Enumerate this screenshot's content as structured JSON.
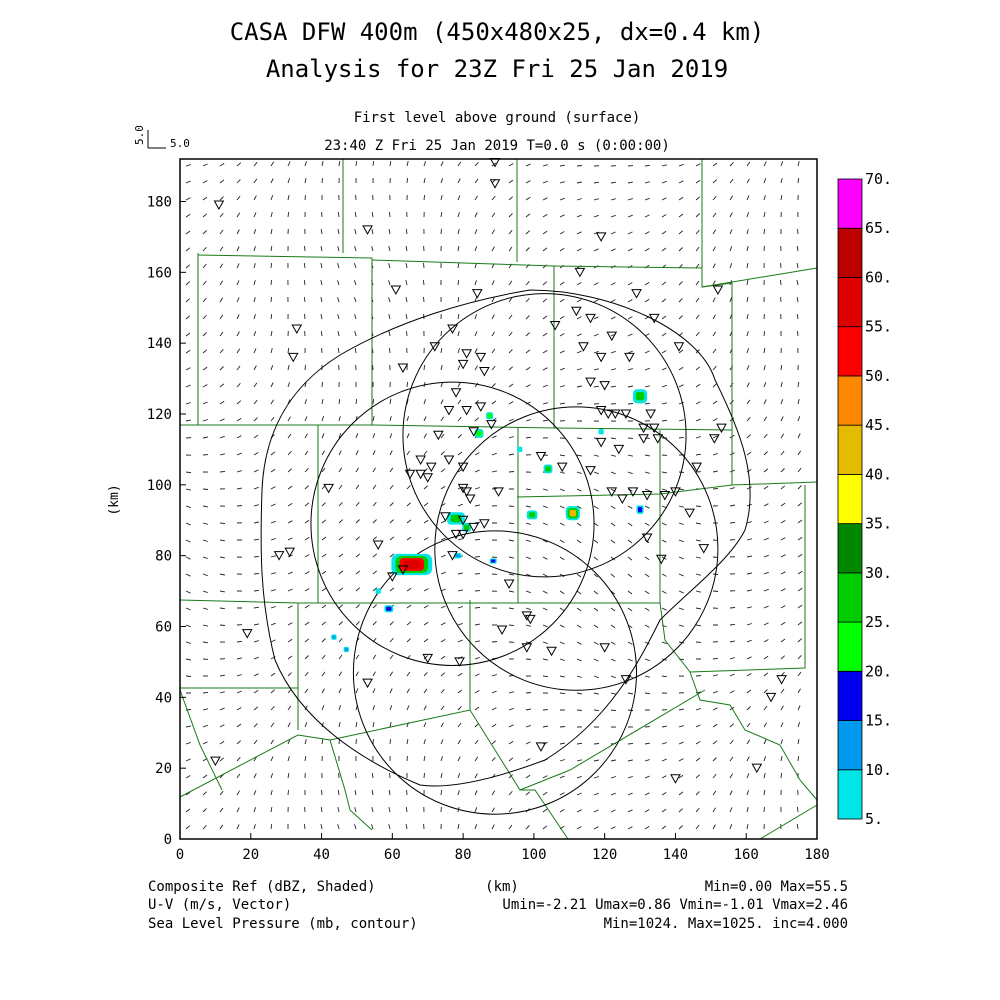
{
  "header": {
    "title_line1": "CASA DFW 400m (450x480x25, dx=0.4 km)",
    "title_line2": "Analysis for 23Z Fri 25 Jan 2019",
    "level_label": "First level above ground (surface)",
    "time_label": "23:40 Z Fri 25 Jan 2019    T=0.0 s (0:00:00)",
    "vector_scale_label": "5.0",
    "vector_scale_label_vertical": "5.0"
  },
  "footer": {
    "shade_field": "Composite Ref (dBZ, Shaded)",
    "xunit": "(km)",
    "shade_range": "Min=0.00 Max=55.5",
    "vector_field": "U-V (m/s, Vector)",
    "vector_range": "Umin=-2.21 Umax=0.86 Vmin=-1.01 Vmax=2.46",
    "contour_field": "Sea Level Pressure (mb, contour)",
    "contour_range": "Min=1024. Max=1025. inc=4.000"
  },
  "chart_data": {
    "type": "heatmap",
    "xlabel": "(km)",
    "ylabel": "(km)",
    "xlim": [
      0,
      180
    ],
    "ylim": [
      0,
      192
    ],
    "xticks": [
      0,
      20,
      40,
      60,
      80,
      100,
      120,
      140,
      160,
      180
    ],
    "yticks": [
      0,
      20,
      40,
      60,
      80,
      100,
      120,
      140,
      160,
      180
    ],
    "grid": false,
    "colorbar": {
      "levels": [
        "5.",
        "10.",
        "15.",
        "20.",
        "25.",
        "30.",
        "35.",
        "40.",
        "45.",
        "50.",
        "55.",
        "60.",
        "65.",
        "70."
      ],
      "colors": [
        "#00e5e5",
        "#0099ee",
        "#0000ee",
        "#00ff00",
        "#00cc00",
        "#008800",
        "#ffff00",
        "#e5bb00",
        "#ff8800",
        "#ff0000",
        "#dd0000",
        "#bb0000",
        "#ff00ff"
      ]
    },
    "reflectivity_cells": [
      {
        "x": 65.5,
        "y": 77.5,
        "w": 11.5,
        "h": 6,
        "max_dbz": 55.5
      },
      {
        "x": 130,
        "y": 125,
        "w": 4,
        "h": 4,
        "max_dbz": 25
      },
      {
        "x": 111,
        "y": 92,
        "w": 4,
        "h": 4,
        "max_dbz": 40
      },
      {
        "x": 78,
        "y": 90.5,
        "w": 5,
        "h": 3.5,
        "max_dbz": 25
      },
      {
        "x": 104,
        "y": 104.5,
        "w": 2.5,
        "h": 2.5,
        "max_dbz": 25
      },
      {
        "x": 99.5,
        "y": 91.5,
        "w": 3,
        "h": 2.5,
        "max_dbz": 25
      },
      {
        "x": 81,
        "y": 88,
        "w": 2.5,
        "h": 2.5,
        "max_dbz": 25
      },
      {
        "x": 84.5,
        "y": 114.5,
        "w": 2.5,
        "h": 2.5,
        "max_dbz": 20
      },
      {
        "x": 87.5,
        "y": 119.5,
        "w": 2,
        "h": 2,
        "max_dbz": 20
      },
      {
        "x": 130,
        "y": 93,
        "w": 2,
        "h": 2.5,
        "max_dbz": 15
      },
      {
        "x": 59,
        "y": 65,
        "w": 2.5,
        "h": 2,
        "max_dbz": 15
      },
      {
        "x": 88.5,
        "y": 78.5,
        "w": 2,
        "h": 1.5,
        "max_dbz": 15
      },
      {
        "x": 78.5,
        "y": 80,
        "w": 2,
        "h": 1.5,
        "max_dbz": 10
      },
      {
        "x": 43.5,
        "y": 57,
        "w": 1.5,
        "h": 1.5,
        "max_dbz": 10
      },
      {
        "x": 47,
        "y": 53.5,
        "w": 1.5,
        "h": 1.5,
        "max_dbz": 10
      },
      {
        "x": 56,
        "y": 70,
        "w": 1.5,
        "h": 1.5,
        "max_dbz": 5
      },
      {
        "x": 96,
        "y": 110,
        "w": 1.5,
        "h": 1.5,
        "max_dbz": 5
      },
      {
        "x": 119,
        "y": 115,
        "w": 1.5,
        "h": 1.5,
        "max_dbz": 5
      }
    ],
    "radar_circles": [
      {
        "x": 89,
        "y": 47,
        "r": 40
      },
      {
        "x": 112,
        "y": 82,
        "r": 40
      },
      {
        "x": 103,
        "y": 114,
        "r": 40
      },
      {
        "x": 77,
        "y": 89,
        "r": 40
      }
    ],
    "station_markers": [
      [
        89,
        191
      ],
      [
        89,
        185
      ],
      [
        11,
        179
      ],
      [
        53,
        172
      ],
      [
        119,
        170
      ],
      [
        113,
        160
      ],
      [
        61,
        155
      ],
      [
        84,
        154
      ],
      [
        129,
        154
      ],
      [
        152,
        155
      ],
      [
        33,
        144
      ],
      [
        77,
        144
      ],
      [
        112,
        149
      ],
      [
        116,
        147
      ],
      [
        122,
        142
      ],
      [
        134,
        147
      ],
      [
        106,
        145
      ],
      [
        81,
        137
      ],
      [
        85,
        136
      ],
      [
        80,
        134
      ],
      [
        86,
        132
      ],
      [
        32,
        136
      ],
      [
        63,
        133
      ],
      [
        72,
        139
      ],
      [
        114,
        139
      ],
      [
        119,
        136
      ],
      [
        127,
        136
      ],
      [
        141,
        139
      ],
      [
        116,
        129
      ],
      [
        120,
        128
      ],
      [
        78,
        126
      ],
      [
        76,
        121
      ],
      [
        81,
        121
      ],
      [
        85,
        122
      ],
      [
        88,
        117
      ],
      [
        126,
        120
      ],
      [
        119,
        121
      ],
      [
        121,
        120
      ],
      [
        123,
        120
      ],
      [
        133,
        120
      ],
      [
        131,
        116
      ],
      [
        134,
        116
      ],
      [
        131,
        113
      ],
      [
        135,
        113
      ],
      [
        119,
        112
      ],
      [
        151,
        113
      ],
      [
        153,
        116
      ],
      [
        124,
        110
      ],
      [
        83,
        115
      ],
      [
        73,
        114
      ],
      [
        76,
        107
      ],
      [
        68,
        107
      ],
      [
        65,
        103
      ],
      [
        68,
        103
      ],
      [
        70,
        102
      ],
      [
        71,
        105
      ],
      [
        80,
        105
      ],
      [
        80,
        99
      ],
      [
        81,
        98
      ],
      [
        90,
        98
      ],
      [
        82,
        96
      ],
      [
        102,
        108
      ],
      [
        108,
        105
      ],
      [
        116,
        104
      ],
      [
        122,
        98
      ],
      [
        125,
        96
      ],
      [
        128,
        98
      ],
      [
        132,
        97
      ],
      [
        137,
        97
      ],
      [
        144,
        92
      ],
      [
        140,
        98
      ],
      [
        146,
        105
      ],
      [
        148,
        82
      ],
      [
        132,
        85
      ],
      [
        136,
        79
      ],
      [
        42,
        99
      ],
      [
        28,
        80
      ],
      [
        31,
        81
      ],
      [
        56,
        83
      ],
      [
        77,
        80
      ],
      [
        78,
        86
      ],
      [
        80,
        86
      ],
      [
        83,
        88
      ],
      [
        86,
        89
      ],
      [
        80,
        90
      ],
      [
        75,
        91
      ],
      [
        93,
        72
      ],
      [
        98,
        63
      ],
      [
        99,
        62
      ],
      [
        91,
        59
      ],
      [
        98,
        54
      ],
      [
        105,
        53
      ],
      [
        120,
        54
      ],
      [
        126,
        45
      ],
      [
        19,
        58
      ],
      [
        53,
        44
      ],
      [
        70,
        51
      ],
      [
        79,
        50
      ],
      [
        102,
        26
      ],
      [
        140,
        17
      ],
      [
        10,
        22
      ],
      [
        163,
        20
      ],
      [
        167,
        40
      ],
      [
        170,
        45
      ],
      [
        60,
        74
      ],
      [
        63,
        76
      ]
    ]
  }
}
